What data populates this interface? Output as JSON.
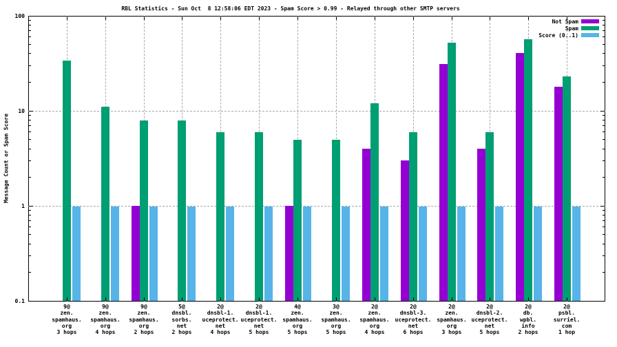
{
  "title": "RBL Statistics - Sun Oct  8 12:58:06 EDT 2023 - Spam Score > 0.99 - Relayed through other SMTP servers",
  "y_axis": {
    "label": "Message Count or Spam Score",
    "scale": "log",
    "tick_labels": [
      "100",
      "10",
      "1",
      "0.1"
    ]
  },
  "legend": {
    "position": "top-right",
    "items": [
      {
        "label": "Not Spam",
        "color": "#9400D3"
      },
      {
        "label": "Spam",
        "color": "#009E73"
      },
      {
        "label": "Score (0..1)",
        "color": "#56B4E9"
      }
    ]
  },
  "colors": {
    "not_spam": "#9400D3",
    "spam": "#009E73",
    "score": "#56B4E9",
    "gridline": "#a6a6a6",
    "axis": "#000000"
  },
  "chart_data": {
    "type": "bar",
    "title": "RBL Statistics - Sun Oct  8 12:58:06 EDT 2023 - Spam Score > 0.99 - Relayed through other SMTP servers",
    "xlabel": "",
    "ylabel": "Message Count or Spam Score",
    "y_scale": "log",
    "ylim": [
      0.1,
      100
    ],
    "grid": true,
    "legend_position": "top-right",
    "categories": [
      [
        "9@",
        "zen.",
        "spamhaus.",
        "org",
        "3 hops"
      ],
      [
        "9@",
        "zen.",
        "spamhaus.",
        "org",
        "4 hops"
      ],
      [
        "9@",
        "zen.",
        "spamhaus.",
        "org",
        "2 hops"
      ],
      [
        "5@",
        "dnsbl.",
        "sorbs.",
        "net",
        "2 hops"
      ],
      [
        "2@",
        "dnsbl-1.",
        "uceprotect.",
        "net",
        "4 hops"
      ],
      [
        "2@",
        "dnsbl-1.",
        "uceprotect.",
        "net",
        "5 hops"
      ],
      [
        "4@",
        "zen.",
        "spamhaus.",
        "org",
        "5 hops"
      ],
      [
        "3@",
        "zen.",
        "spamhaus.",
        "org",
        "5 hops"
      ],
      [
        "2@",
        "zen.",
        "spamhaus.",
        "org",
        "4 hops"
      ],
      [
        "2@",
        "dnsbl-3.",
        "uceprotect.",
        "net",
        "6 hops"
      ],
      [
        "2@",
        "zen.",
        "spamhaus.",
        "org",
        "3 hops"
      ],
      [
        "2@",
        "dnsbl-2.",
        "uceprotect.",
        "net",
        "5 hops"
      ],
      [
        "2@",
        "db.",
        "wpbl.",
        "info",
        "2 hops"
      ],
      [
        "2@",
        "psbl.",
        "surriel.",
        "com",
        "1 hop"
      ]
    ],
    "series": [
      {
        "name": "Not Spam",
        "color": "#9400D3",
        "values": [
          null,
          null,
          1,
          null,
          null,
          null,
          1,
          null,
          4,
          3,
          31,
          4,
          41,
          18
        ]
      },
      {
        "name": "Spam",
        "color": "#009E73",
        "values": [
          34,
          11,
          8,
          8,
          6,
          6,
          5,
          5,
          12,
          6,
          52,
          6,
          57,
          23
        ]
      },
      {
        "name": "Score (0..1)",
        "color": "#56B4E9",
        "values": [
          0.99,
          0.99,
          0.99,
          0.99,
          0.99,
          0.99,
          0.99,
          0.99,
          0.99,
          0.99,
          0.99,
          0.99,
          0.99,
          0.99
        ]
      }
    ]
  }
}
